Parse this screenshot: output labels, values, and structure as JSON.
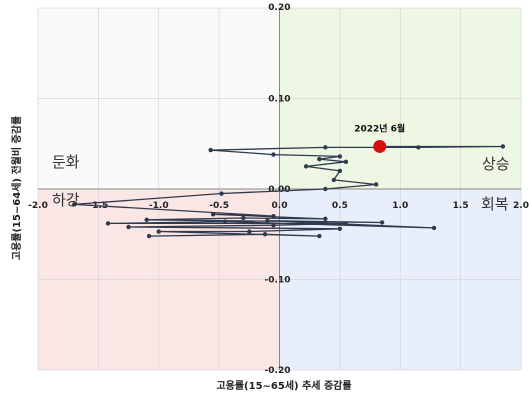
{
  "chart_data": {
    "type": "scatter",
    "xlabel": "고용률(15~65세) 추세 증감률",
    "ylabel": "고용률(15~64세) 전월비 증감률",
    "xlim": [
      -2.0,
      2.0
    ],
    "ylim": [
      -0.2,
      0.2
    ],
    "x_ticks": [
      "-2.0",
      "-1.5",
      "-1.0",
      "-0.5",
      "0.0",
      "0.5",
      "1.0",
      "1.5",
      "2.0"
    ],
    "y_ticks": [
      "0.20",
      "0.10",
      "0.00",
      "-0.10",
      "-0.20"
    ],
    "grid": true,
    "quadrants": {
      "top_left": {
        "label": "둔화",
        "color": "#fafafa"
      },
      "top_right": {
        "label": "상승",
        "color": "#eef6e4"
      },
      "bottom_left": {
        "label": "하강",
        "color": "#fbe6e6"
      },
      "bottom_right": {
        "label": "회복",
        "color": "#e8eefa"
      }
    },
    "line_color": "#2e3a4e",
    "highlight_color": "#d41010",
    "highlight": {
      "label": "2022년 6월",
      "x": 0.83,
      "y": 0.047
    },
    "points": [
      [
        -1.08,
        -0.052
      ],
      [
        -0.12,
        -0.05
      ],
      [
        0.33,
        -0.052
      ],
      [
        -1.0,
        -0.047
      ],
      [
        -0.25,
        -0.047
      ],
      [
        0.5,
        -0.044
      ],
      [
        -1.25,
        -0.042
      ],
      [
        -0.05,
        -0.04
      ],
      [
        0.55,
        -0.038
      ],
      [
        -1.42,
        -0.038
      ],
      [
        -0.45,
        -0.036
      ],
      [
        1.28,
        -0.043
      ],
      [
        -0.1,
        -0.035
      ],
      [
        0.85,
        -0.037
      ],
      [
        -1.1,
        -0.034
      ],
      [
        -0.3,
        -0.032
      ],
      [
        0.38,
        -0.033
      ],
      [
        -0.55,
        -0.028
      ],
      [
        -0.05,
        -0.03
      ],
      [
        -1.7,
        -0.017
      ],
      [
        -0.48,
        -0.005
      ],
      [
        0.38,
        0.0
      ],
      [
        0.8,
        0.005
      ],
      [
        0.45,
        0.01
      ],
      [
        0.5,
        0.02
      ],
      [
        0.22,
        0.025
      ],
      [
        0.55,
        0.03
      ],
      [
        0.33,
        0.033
      ],
      [
        0.5,
        0.036
      ],
      [
        -0.05,
        0.038
      ],
      [
        -0.57,
        0.043
      ],
      [
        0.38,
        0.046
      ],
      [
        1.15,
        0.046
      ],
      [
        1.85,
        0.047
      ],
      [
        0.83,
        0.047
      ]
    ]
  }
}
